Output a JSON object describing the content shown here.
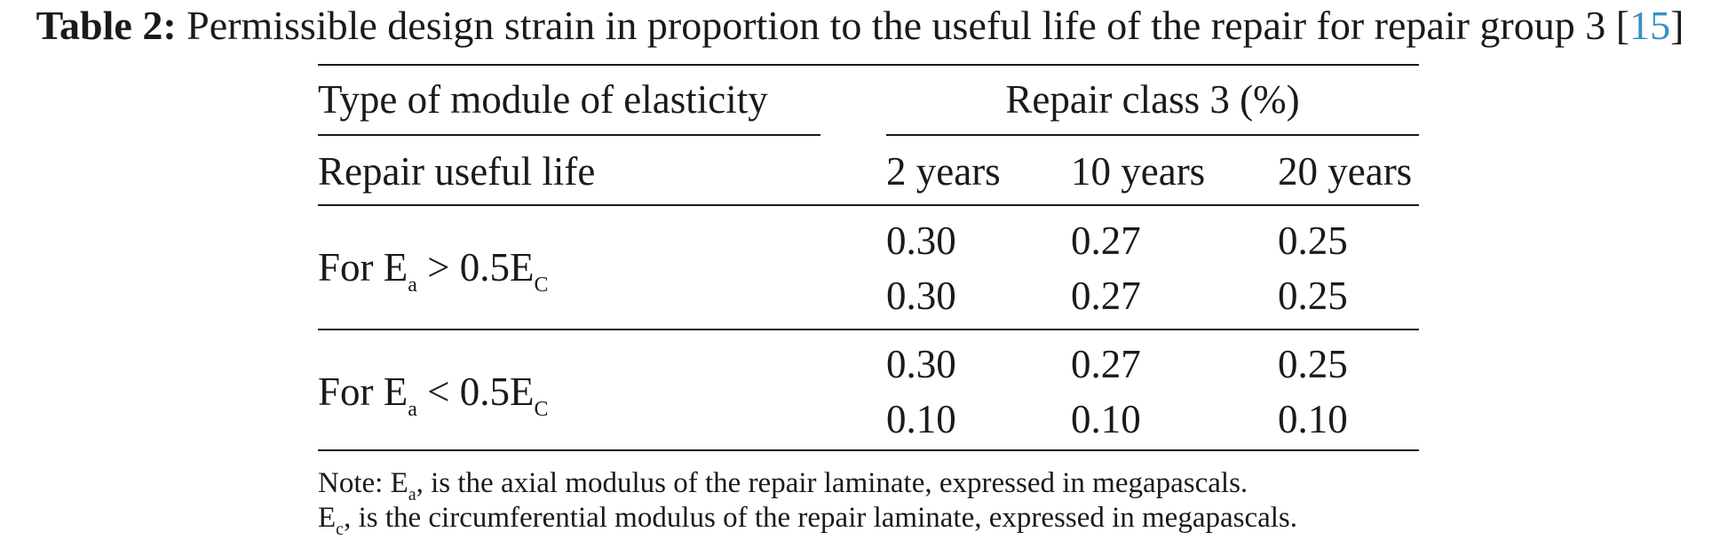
{
  "caption": {
    "label": "Table 2:",
    "text": "Permissible design strain in proportion to the useful life of the repair for repair group 3",
    "cite_open": "[",
    "cite": "15",
    "cite_close": "]"
  },
  "table": {
    "header_left_top": "Type of module of elasticity",
    "header_left_bottom": "Repair useful life",
    "header_group": "Repair class 3 (%)",
    "columns": [
      "2 years",
      "10 years",
      "20 years"
    ],
    "groups": [
      {
        "label_prefix": "For E",
        "label_sub1": "a",
        "label_mid": " > 0.5E",
        "label_sub2": "C",
        "rows": [
          [
            "0.30",
            "0.27",
            "0.25"
          ],
          [
            "0.30",
            "0.27",
            "0.25"
          ]
        ]
      },
      {
        "label_prefix": "For E",
        "label_sub1": "a",
        "label_mid": " < 0.5E",
        "label_sub2": "C",
        "rows": [
          [
            "0.30",
            "0.27",
            "0.25"
          ],
          [
            "0.10",
            "0.10",
            "0.10"
          ]
        ]
      }
    ]
  },
  "notes": {
    "line1_prefix": "Note: E",
    "line1_sub": "a",
    "line1_rest": ", is the axial modulus of the repair laminate, expressed in megapascals.",
    "line2_prefix": "E",
    "line2_sub": "c",
    "line2_rest": ", is the circumferential modulus of the repair laminate, expressed in megapascals."
  }
}
